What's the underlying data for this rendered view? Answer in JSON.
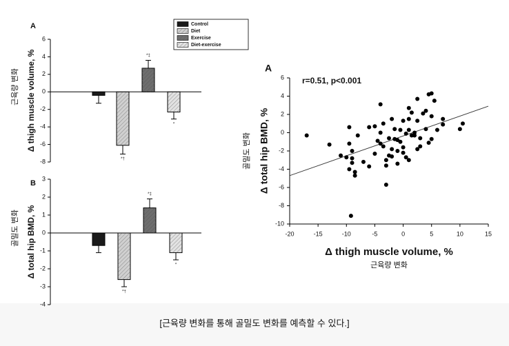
{
  "chart_data": [
    {
      "type": "bar",
      "panel": "A",
      "y_label": "Δ thigh muscle volume, %",
      "y_label_ko": "근육량 변화",
      "categories": [
        "Control",
        "Diet",
        "Exercise",
        "Diet-exercise"
      ],
      "colors": [
        "#1a1a1a",
        "#d0d0d0",
        "#6e6e6e",
        "#e2e2e2"
      ],
      "values": [
        -0.4,
        -6.1,
        2.7,
        -2.3
      ],
      "errors": [
        0.9,
        1.0,
        0.9,
        0.8
      ],
      "annotations": [
        null,
        "*†",
        "*‡",
        "*"
      ],
      "ylim": [
        -8,
        6
      ],
      "yticks": [
        -8,
        -6,
        -4,
        -2,
        0,
        2,
        4,
        6
      ]
    },
    {
      "type": "bar",
      "panel": "B",
      "y_label": "Δ total hip BMD, %",
      "y_label_ko": "골밀도 변화",
      "colors": [
        "#1a1a1a",
        "#d0d0d0",
        "#6e6e6e",
        "#e2e2e2"
      ],
      "values": [
        -0.7,
        -2.6,
        1.4,
        -1.1
      ],
      "errors": [
        0.4,
        0.4,
        0.5,
        0.4
      ],
      "annotations": [
        null,
        "*†",
        "*‡",
        "*"
      ],
      "ylim": [
        -4,
        3
      ],
      "yticks": [
        -4,
        -3,
        -2,
        -1,
        0,
        1,
        2,
        3
      ]
    },
    {
      "type": "scatter",
      "panel": "A",
      "annotation": "r=0.51, p<0.001",
      "x_label": "Δ thigh muscle volume, %",
      "x_label_ko": "근육량 변화",
      "y_label": "Δ total hip BMD, %",
      "y_label_ko": "골밀도 변화",
      "color": "#000000",
      "x": [
        -17,
        -13,
        -11,
        -10,
        -9.5,
        -9.5,
        -9,
        -9,
        -9.5,
        -9,
        -8.5,
        -8.5,
        -8,
        -9.2,
        -7,
        -6,
        -6,
        -5,
        -5,
        -4.5,
        -4,
        -4,
        -4,
        -3.5,
        -3.5,
        -3,
        -3,
        -3,
        -2.5,
        -2.5,
        -2,
        -2,
        -2,
        -1.5,
        -1.5,
        -1,
        -1,
        -1,
        -0.5,
        -0.5,
        0,
        0,
        0,
        0.5,
        0.5,
        1,
        1,
        1,
        1,
        1.5,
        1.5,
        2,
        2,
        2.5,
        2.5,
        2.5,
        3,
        3,
        3.5,
        4,
        4,
        4.5,
        4.5,
        5,
        5,
        5,
        5.5,
        6,
        7,
        7,
        10,
        10.5
      ],
      "y": [
        -0.3,
        -1.3,
        -2.5,
        -2.7,
        0.6,
        -1.2,
        -2.0,
        -2.8,
        -4.0,
        -3.3,
        -4.3,
        -4.7,
        -0.3,
        -9.1,
        -3.2,
        -3.7,
        0.6,
        0.7,
        -2.3,
        -0.9,
        3.1,
        0.0,
        -1.2,
        1.0,
        -1.5,
        -3.0,
        -3.6,
        -5.7,
        -2.5,
        -0.6,
        -1.8,
        1.5,
        -2.6,
        -0.7,
        0.4,
        -0.8,
        -2.0,
        -3.4,
        0.3,
        -1.0,
        1.3,
        -1.6,
        -2.2,
        -0.1,
        -2.7,
        2.7,
        1.5,
        0.3,
        -3.0,
        2.2,
        -0.3,
        0.0,
        -0.3,
        3.7,
        1.3,
        -1.8,
        -0.6,
        -1.5,
        2.1,
        2.4,
        0.4,
        4.2,
        -1.1,
        4.3,
        1.8,
        -0.7,
        3.5,
        0.3,
        1.5,
        0.9,
        0.4,
        1.0
      ],
      "trendline": {
        "x": [
          -20,
          15
        ],
        "y": [
          -4.7,
          2.9
        ]
      },
      "xlim": [
        -20,
        15
      ],
      "xticks": [
        -20,
        -15,
        -10,
        -5,
        0,
        5,
        10,
        15
      ],
      "ylim": [
        -10,
        6
      ],
      "yticks": [
        -10,
        -8,
        -6,
        -4,
        -2,
        0,
        2,
        4,
        6
      ]
    }
  ],
  "caption": "[근육량 변화를 통해 골밀도 변화를 예측할 수 있다.]"
}
